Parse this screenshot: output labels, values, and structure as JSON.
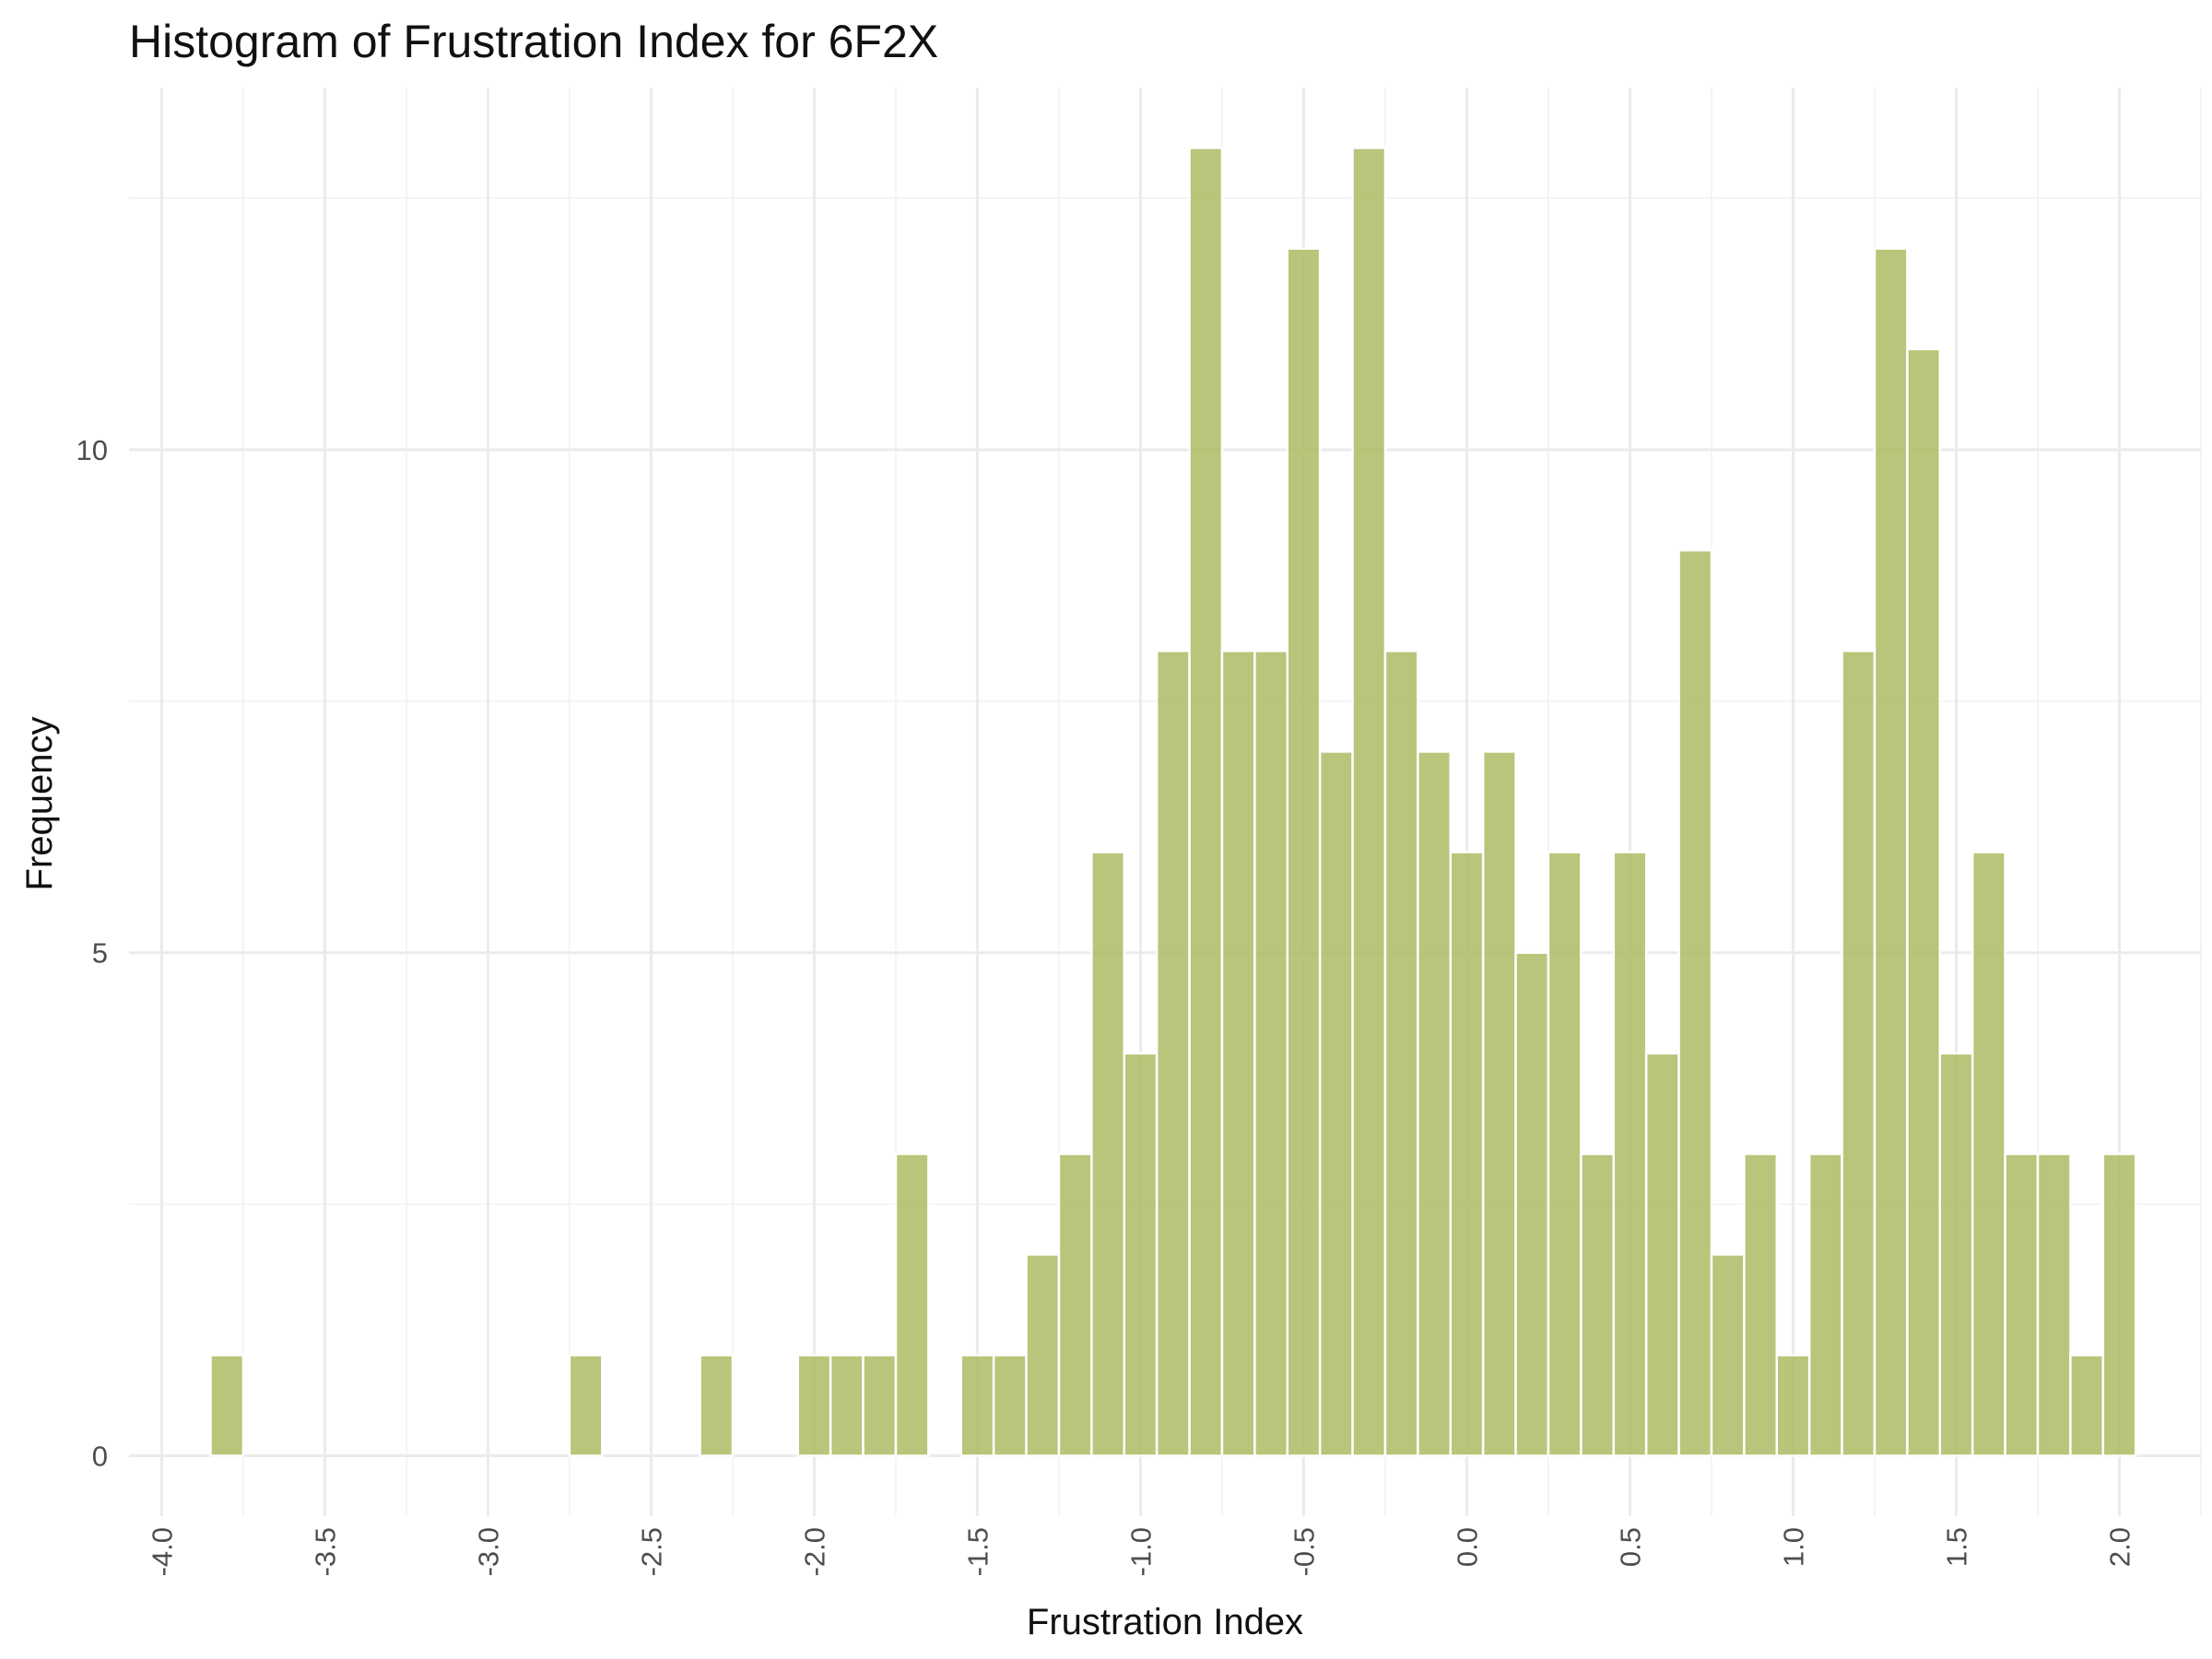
{
  "chart_data": {
    "type": "bar",
    "title": "Histogram of Frustration Index for 6F2X",
    "xlabel": "Frustration Index",
    "ylabel": "Frequency",
    "xlim": [
      -4.1,
      2.25
    ],
    "ylim": [
      -0.6,
      13.6
    ],
    "x_ticks": [
      -4.0,
      -3.5,
      -3.0,
      -2.5,
      -2.0,
      -1.5,
      -1.0,
      -0.5,
      0.0,
      0.5,
      1.0,
      1.5,
      2.0
    ],
    "x_tick_labels": [
      "-4.0",
      "-3.5",
      "-3.0",
      "-2.5",
      "-2.0",
      "-1.5",
      "-1.0",
      "-0.5",
      "0.0",
      "0.5",
      "1.0",
      "1.5",
      "2.0"
    ],
    "y_ticks": [
      0,
      5,
      10
    ],
    "y_tick_labels": [
      "0",
      "5",
      "10"
    ],
    "grid": true,
    "bar_color": "#adbb63",
    "bar_outline": "#ffffff",
    "bin_width": 0.1,
    "bins": [
      {
        "center": -3.8,
        "count": 1
      },
      {
        "center": -2.7,
        "count": 1
      },
      {
        "center": -2.3,
        "count": 1
      },
      {
        "center": -2.0,
        "count": 1
      },
      {
        "center": -1.9,
        "count": 1
      },
      {
        "center": -1.8,
        "count": 1
      },
      {
        "center": -1.7,
        "count": 3
      },
      {
        "center": -1.5,
        "count": 1
      },
      {
        "center": -1.4,
        "count": 1
      },
      {
        "center": -1.3,
        "count": 2
      },
      {
        "center": -1.2,
        "count": 3
      },
      {
        "center": -1.1,
        "count": 6
      },
      {
        "center": -1.0,
        "count": 4
      },
      {
        "center": -0.9,
        "count": 8
      },
      {
        "center": -0.8,
        "count": 13
      },
      {
        "center": -0.7,
        "count": 8
      },
      {
        "center": -0.6,
        "count": 8
      },
      {
        "center": -0.5,
        "count": 12
      },
      {
        "center": -0.4,
        "count": 7
      },
      {
        "center": -0.3,
        "count": 13
      },
      {
        "center": -0.2,
        "count": 8
      },
      {
        "center": -0.1,
        "count": 7
      },
      {
        "center": 0.0,
        "count": 6
      },
      {
        "center": 0.1,
        "count": 7
      },
      {
        "center": 0.2,
        "count": 5
      },
      {
        "center": 0.3,
        "count": 6
      },
      {
        "center": 0.4,
        "count": 3
      },
      {
        "center": 0.5,
        "count": 6
      },
      {
        "center": 0.6,
        "count": 4
      },
      {
        "center": 0.7,
        "count": 9
      },
      {
        "center": 0.8,
        "count": 2
      },
      {
        "center": 0.9,
        "count": 3
      },
      {
        "center": 1.0,
        "count": 1
      },
      {
        "center": 1.1,
        "count": 3
      },
      {
        "center": 1.2,
        "count": 8
      },
      {
        "center": 1.3,
        "count": 12
      },
      {
        "center": 1.4,
        "count": 11
      },
      {
        "center": 1.5,
        "count": 4
      },
      {
        "center": 1.6,
        "count": 6
      },
      {
        "center": 1.7,
        "count": 3
      },
      {
        "center": 1.8,
        "count": 3
      },
      {
        "center": 1.9,
        "count": 1
      },
      {
        "center": 2.0,
        "count": 3
      }
    ]
  }
}
